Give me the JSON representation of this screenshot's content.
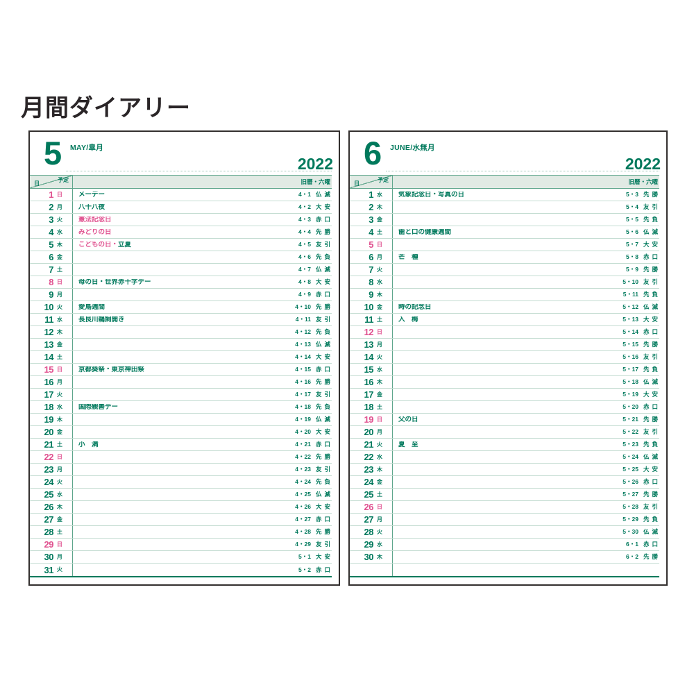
{
  "title": "月間ダイアリー",
  "colors": {
    "green": "#00795c",
    "pink": "#e0518f",
    "band_bg": "#e1eae4",
    "line_mid": "#5fa68c",
    "row_line": "#c3dcd1",
    "page_border": "#332f2e"
  },
  "legend": {
    "plan_label": "予定",
    "day_label": "日",
    "right_label": "旧暦・六曜"
  },
  "months": [
    {
      "num": "5",
      "subtitle": "MAY/皐月",
      "year": "2022",
      "blank_rows": 0,
      "days": [
        {
          "d": "1",
          "w": "日",
          "sun": true,
          "ev": [
            {
              "text": "メーデー",
              "color": "g"
            }
          ],
          "old": "4・1",
          "rok": "仏滅"
        },
        {
          "d": "2",
          "w": "月",
          "sun": false,
          "ev": [
            {
              "text": "八十八夜",
              "color": "g"
            }
          ],
          "old": "4・2",
          "rok": "大安"
        },
        {
          "d": "3",
          "w": "火",
          "sun": false,
          "ev": [
            {
              "text": "憲法記念日",
              "color": "p"
            }
          ],
          "old": "4・3",
          "rok": "赤口"
        },
        {
          "d": "4",
          "w": "水",
          "sun": false,
          "ev": [
            {
              "text": "みどりの日",
              "color": "p"
            }
          ],
          "old": "4・4",
          "rok": "先勝"
        },
        {
          "d": "5",
          "w": "木",
          "sun": false,
          "ev": [
            {
              "text": "こどもの日・",
              "color": "p"
            },
            {
              "text": "立夏",
              "color": "g"
            }
          ],
          "old": "4・5",
          "rok": "友引"
        },
        {
          "d": "6",
          "w": "金",
          "sun": false,
          "ev": [],
          "old": "4・6",
          "rok": "先負"
        },
        {
          "d": "7",
          "w": "土",
          "sun": false,
          "ev": [],
          "old": "4・7",
          "rok": "仏滅"
        },
        {
          "d": "8",
          "w": "日",
          "sun": true,
          "ev": [
            {
              "text": "母の日・世界赤十字デー",
              "color": "g"
            }
          ],
          "old": "4・8",
          "rok": "大安"
        },
        {
          "d": "9",
          "w": "月",
          "sun": false,
          "ev": [],
          "old": "4・9",
          "rok": "赤口"
        },
        {
          "d": "10",
          "w": "火",
          "sun": false,
          "ev": [
            {
              "text": "愛鳥週間",
              "color": "g"
            }
          ],
          "old": "4・10",
          "rok": "先勝"
        },
        {
          "d": "11",
          "w": "水",
          "sun": false,
          "ev": [
            {
              "text": "長良川鵜飼開き",
              "color": "g"
            }
          ],
          "old": "4・11",
          "rok": "友引"
        },
        {
          "d": "12",
          "w": "木",
          "sun": false,
          "ev": [],
          "old": "4・12",
          "rok": "先負"
        },
        {
          "d": "13",
          "w": "金",
          "sun": false,
          "ev": [],
          "old": "4・13",
          "rok": "仏滅"
        },
        {
          "d": "14",
          "w": "土",
          "sun": false,
          "ev": [],
          "old": "4・14",
          "rok": "大安"
        },
        {
          "d": "15",
          "w": "日",
          "sun": true,
          "ev": [
            {
              "text": "京都葵祭・東京神田祭",
              "color": "g"
            }
          ],
          "old": "4・15",
          "rok": "赤口"
        },
        {
          "d": "16",
          "w": "月",
          "sun": false,
          "ev": [],
          "old": "4・16",
          "rok": "先勝"
        },
        {
          "d": "17",
          "w": "火",
          "sun": false,
          "ev": [],
          "old": "4・17",
          "rok": "友引"
        },
        {
          "d": "18",
          "w": "水",
          "sun": false,
          "ev": [
            {
              "text": "国際親善デー",
              "color": "g"
            }
          ],
          "old": "4・18",
          "rok": "先負"
        },
        {
          "d": "19",
          "w": "木",
          "sun": false,
          "ev": [],
          "old": "4・19",
          "rok": "仏滅"
        },
        {
          "d": "20",
          "w": "金",
          "sun": false,
          "ev": [],
          "old": "4・20",
          "rok": "大安"
        },
        {
          "d": "21",
          "w": "土",
          "sun": false,
          "ev": [
            {
              "text": "小　満",
              "color": "g"
            }
          ],
          "old": "4・21",
          "rok": "赤口"
        },
        {
          "d": "22",
          "w": "日",
          "sun": true,
          "ev": [],
          "old": "4・22",
          "rok": "先勝"
        },
        {
          "d": "23",
          "w": "月",
          "sun": false,
          "ev": [],
          "old": "4・23",
          "rok": "友引"
        },
        {
          "d": "24",
          "w": "火",
          "sun": false,
          "ev": [],
          "old": "4・24",
          "rok": "先負"
        },
        {
          "d": "25",
          "w": "水",
          "sun": false,
          "ev": [],
          "old": "4・25",
          "rok": "仏滅"
        },
        {
          "d": "26",
          "w": "木",
          "sun": false,
          "ev": [],
          "old": "4・26",
          "rok": "大安"
        },
        {
          "d": "27",
          "w": "金",
          "sun": false,
          "ev": [],
          "old": "4・27",
          "rok": "赤口"
        },
        {
          "d": "28",
          "w": "土",
          "sun": false,
          "ev": [],
          "old": "4・28",
          "rok": "先勝"
        },
        {
          "d": "29",
          "w": "日",
          "sun": true,
          "ev": [],
          "old": "4・29",
          "rok": "友引"
        },
        {
          "d": "30",
          "w": "月",
          "sun": false,
          "ev": [],
          "old": "5・1",
          "rok": "大安"
        },
        {
          "d": "31",
          "w": "火",
          "sun": false,
          "ev": [],
          "old": "5・2",
          "rok": "赤口"
        }
      ]
    },
    {
      "num": "6",
      "subtitle": "JUNE/水無月",
      "year": "2022",
      "blank_rows": 1,
      "days": [
        {
          "d": "1",
          "w": "水",
          "sun": false,
          "ev": [
            {
              "text": "気象記念日・写真の日",
              "color": "g"
            }
          ],
          "old": "5・3",
          "rok": "先勝"
        },
        {
          "d": "2",
          "w": "木",
          "sun": false,
          "ev": [],
          "old": "5・4",
          "rok": "友引"
        },
        {
          "d": "3",
          "w": "金",
          "sun": false,
          "ev": [],
          "old": "5・5",
          "rok": "先負"
        },
        {
          "d": "4",
          "w": "土",
          "sun": false,
          "ev": [
            {
              "text": "歯と口の健康週間",
              "color": "g"
            }
          ],
          "old": "5・6",
          "rok": "仏滅"
        },
        {
          "d": "5",
          "w": "日",
          "sun": true,
          "ev": [],
          "old": "5・7",
          "rok": "大安"
        },
        {
          "d": "6",
          "w": "月",
          "sun": false,
          "ev": [
            {
              "text": "芒　種",
              "color": "g"
            }
          ],
          "old": "5・8",
          "rok": "赤口"
        },
        {
          "d": "7",
          "w": "火",
          "sun": false,
          "ev": [],
          "old": "5・9",
          "rok": "先勝"
        },
        {
          "d": "8",
          "w": "水",
          "sun": false,
          "ev": [],
          "old": "5・10",
          "rok": "友引"
        },
        {
          "d": "9",
          "w": "木",
          "sun": false,
          "ev": [],
          "old": "5・11",
          "rok": "先負"
        },
        {
          "d": "10",
          "w": "金",
          "sun": false,
          "ev": [
            {
              "text": "時の記念日",
              "color": "g"
            }
          ],
          "old": "5・12",
          "rok": "仏滅"
        },
        {
          "d": "11",
          "w": "土",
          "sun": false,
          "ev": [
            {
              "text": "入　梅",
              "color": "g"
            }
          ],
          "old": "5・13",
          "rok": "大安"
        },
        {
          "d": "12",
          "w": "日",
          "sun": true,
          "ev": [],
          "old": "5・14",
          "rok": "赤口"
        },
        {
          "d": "13",
          "w": "月",
          "sun": false,
          "ev": [],
          "old": "5・15",
          "rok": "先勝"
        },
        {
          "d": "14",
          "w": "火",
          "sun": false,
          "ev": [],
          "old": "5・16",
          "rok": "友引"
        },
        {
          "d": "15",
          "w": "水",
          "sun": false,
          "ev": [],
          "old": "5・17",
          "rok": "先負"
        },
        {
          "d": "16",
          "w": "木",
          "sun": false,
          "ev": [],
          "old": "5・18",
          "rok": "仏滅"
        },
        {
          "d": "17",
          "w": "金",
          "sun": false,
          "ev": [],
          "old": "5・19",
          "rok": "大安"
        },
        {
          "d": "18",
          "w": "土",
          "sun": false,
          "ev": [],
          "old": "5・20",
          "rok": "赤口"
        },
        {
          "d": "19",
          "w": "日",
          "sun": true,
          "ev": [
            {
              "text": "父の日",
              "color": "g"
            }
          ],
          "old": "5・21",
          "rok": "先勝"
        },
        {
          "d": "20",
          "w": "月",
          "sun": false,
          "ev": [],
          "old": "5・22",
          "rok": "友引"
        },
        {
          "d": "21",
          "w": "火",
          "sun": false,
          "ev": [
            {
              "text": "夏　至",
              "color": "g"
            }
          ],
          "old": "5・23",
          "rok": "先負"
        },
        {
          "d": "22",
          "w": "水",
          "sun": false,
          "ev": [],
          "old": "5・24",
          "rok": "仏滅"
        },
        {
          "d": "23",
          "w": "木",
          "sun": false,
          "ev": [],
          "old": "5・25",
          "rok": "大安"
        },
        {
          "d": "24",
          "w": "金",
          "sun": false,
          "ev": [],
          "old": "5・26",
          "rok": "赤口"
        },
        {
          "d": "25",
          "w": "土",
          "sun": false,
          "ev": [],
          "old": "5・27",
          "rok": "先勝"
        },
        {
          "d": "26",
          "w": "日",
          "sun": true,
          "ev": [],
          "old": "5・28",
          "rok": "友引"
        },
        {
          "d": "27",
          "w": "月",
          "sun": false,
          "ev": [],
          "old": "5・29",
          "rok": "先負"
        },
        {
          "d": "28",
          "w": "火",
          "sun": false,
          "ev": [],
          "old": "5・30",
          "rok": "仏滅"
        },
        {
          "d": "29",
          "w": "水",
          "sun": false,
          "ev": [],
          "old": "6・1",
          "rok": "赤口"
        },
        {
          "d": "30",
          "w": "木",
          "sun": false,
          "ev": [],
          "old": "6・2",
          "rok": "先勝"
        }
      ]
    }
  ]
}
